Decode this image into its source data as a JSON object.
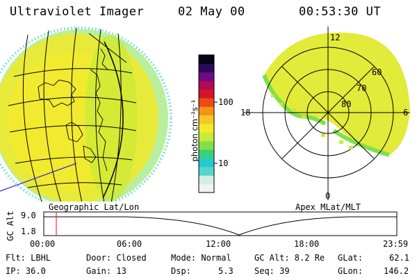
{
  "header": {
    "instrument": "Ultraviolet Imager",
    "date": "02 May 00",
    "time": "00:53:30 UT"
  },
  "colorbar": {
    "unit_label": "photon cm⁻²s⁻¹",
    "tick_100": "100",
    "tick_10": "10",
    "colors": [
      "#f2f2f2",
      "#cfeee9",
      "#55d7c8",
      "#22c9d2",
      "#39d07a",
      "#7fe04a",
      "#c9ea37",
      "#f1ea2f",
      "#f5c823",
      "#f59318",
      "#ee4a14",
      "#d5122a",
      "#b00a55",
      "#6d0a84",
      "#2a0a5a",
      "#050518"
    ]
  },
  "left_panel": {
    "caption": "Geographic Lat/Lon"
  },
  "right_panel": {
    "caption": "Apex MLat/MLT",
    "mlt_labels": {
      "top": "12",
      "left": "18",
      "right": "6",
      "bottom": "0"
    },
    "mlat_labels": [
      "60",
      "70",
      "80"
    ]
  },
  "altitude_plot": {
    "ylabel": "GC Alt",
    "ytick_top": "9.0",
    "ytick_bottom": "1.8",
    "xticks": [
      "00:00",
      "06:00",
      "12:00",
      "18:00",
      "23:59"
    ],
    "marker_color": "#ff0000"
  },
  "status": {
    "flt": "Flt: LBHL",
    "ip": "IP: 36.0",
    "door": "Door: Closed",
    "gain": "Gain: 13",
    "mode": "Mode: Normal",
    "dsp": "Dsp:",
    "dsp_value": "5.3",
    "gc_alt": "GC Alt: 8.2 Re",
    "seq": "Seq: 39",
    "glat": "GLat:",
    "glat_value": "62.1",
    "glon": "GLon:",
    "glon_value": "146.2"
  }
}
